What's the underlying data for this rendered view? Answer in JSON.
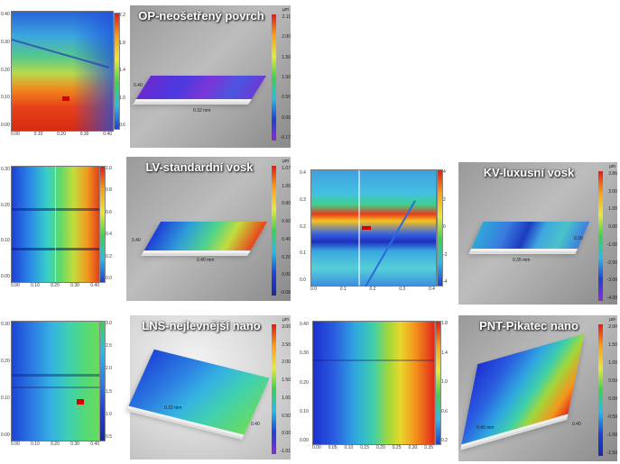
{
  "titles": {
    "op": "OP-neošetřený povrch",
    "lv": "LV-standardní vosk",
    "kv": "KV-luxusní vosk",
    "lns": "LNS-nejlevnější nano",
    "pnt": "PNT-Pikatec nano"
  },
  "unit": "µm",
  "op": {
    "x_ticks": [
      "0.00",
      "0.05",
      "0.10",
      "0.15",
      "0.20",
      "0.25",
      "0.30",
      "0.35",
      "0.40"
    ],
    "y_ticks": [
      "0.40",
      "0.35",
      "0.30",
      "0.25",
      "0.20",
      "0.15",
      "0.10",
      "0.05",
      "0.00"
    ],
    "cb_ticks": [
      "2.2",
      "1.8",
      "1.4",
      "1.0",
      "0.6"
    ],
    "c3_ticks": [
      "2.11",
      "2.00",
      "1.50",
      "1.00",
      "0.50",
      "0.00",
      "-0.17"
    ],
    "dim_x": "0.32 mm",
    "dim_y": "0.40"
  },
  "lv": {
    "x_ticks": [
      "0.00",
      "0.05",
      "0.10",
      "0.15",
      "0.20",
      "0.25",
      "0.30",
      "0.35",
      "0.40"
    ],
    "y_ticks": [
      "0.30",
      "0.25",
      "0.20",
      "0.15",
      "0.10",
      "0.05",
      "0.00"
    ],
    "cb_ticks": [
      "1.0",
      "0.8",
      "0.6",
      "0.4",
      "0.2",
      "0.0"
    ],
    "c3_ticks": [
      "1.07",
      "1.00",
      "0.80",
      "0.60",
      "0.40",
      "0.20",
      "0.00",
      "-0.08"
    ],
    "dim_x": "0.40 mm",
    "dim_y": "0.40"
  },
  "kv": {
    "x_ticks": [
      "0.0",
      "0.1",
      "0.2",
      "0.3",
      "0.4"
    ],
    "y_ticks": [
      "0.4",
      "0.3",
      "0.2",
      "0.1",
      "0.0"
    ],
    "cb_ticks": [
      "4",
      "2",
      "0",
      "-2",
      "-4"
    ],
    "c3_ticks": [
      "3.86",
      "2.00",
      "1.00",
      "0.00",
      "-1.00",
      "-2.00",
      "-3.00",
      "-4.00"
    ],
    "dim_x": "0.35 mm",
    "dim_y": "0.39"
  },
  "lns": {
    "x_ticks": [
      "0.00",
      "0.05",
      "0.10",
      "0.15",
      "0.20",
      "0.25",
      "0.30",
      "0.35",
      "0.40"
    ],
    "y_ticks": [
      "0.30",
      "0.25",
      "0.20",
      "0.15",
      "0.10",
      "0.05",
      "0.00"
    ],
    "cb_ticks": [
      "3.0",
      "2.5",
      "2.0",
      "1.5",
      "1.0",
      "0.5"
    ],
    "c3_ticks": [
      "3.00",
      "2.50",
      "2.00",
      "1.50",
      "1.00",
      "0.50",
      "0.00",
      "-1.01"
    ],
    "dim_x": "0.32 mm",
    "dim_y": "0.40"
  },
  "pnt": {
    "x_ticks": [
      "0.00",
      "0.05",
      "0.10",
      "0.15",
      "0.20",
      "0.25",
      "0.30",
      "0.35"
    ],
    "y_ticks": [
      "0.40",
      "0.35",
      "0.30",
      "0.25",
      "0.20",
      "0.15",
      "0.10",
      "0.05",
      "0.00"
    ],
    "cb_ticks": [
      "1.8",
      "1.4",
      "1.0",
      "0.6",
      "0.2"
    ],
    "c3_ticks": [
      "2.00",
      "1.50",
      "1.00",
      "0.50",
      "0.00",
      "-0.50",
      "-1.00",
      "-1.50"
    ],
    "dim_x": "0.40 mm",
    "dim_y": "0.40"
  }
}
